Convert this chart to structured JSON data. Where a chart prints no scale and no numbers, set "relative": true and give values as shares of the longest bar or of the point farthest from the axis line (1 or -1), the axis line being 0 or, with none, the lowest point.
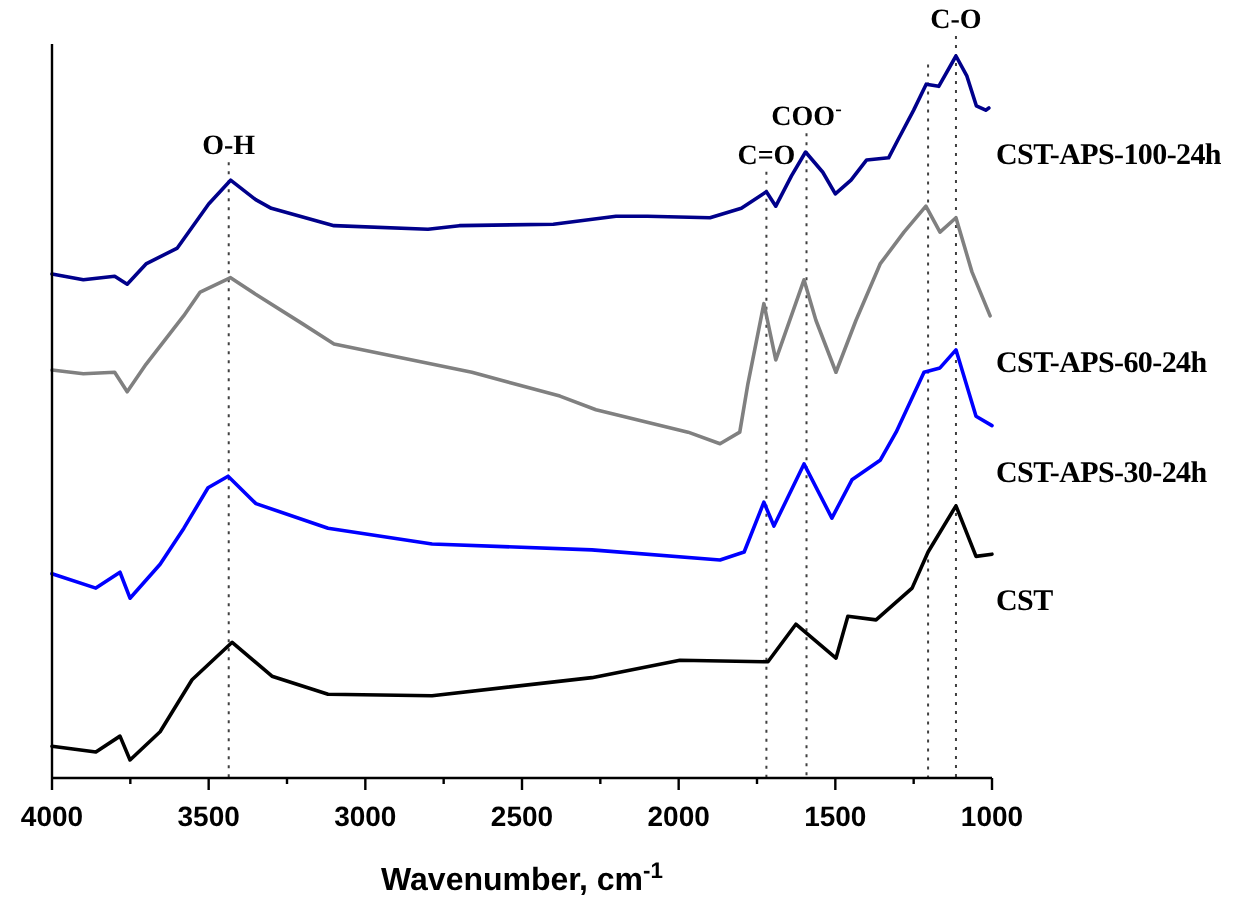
{
  "chart_data": {
    "type": "line",
    "relative": true,
    "xlabel": "Wavenumber, cm$^{-1}$",
    "xlim": [
      4000,
      1000
    ],
    "xticks": [
      4000,
      {
        "value": 3750,
        "label": null
      },
      3500,
      {
        "value": 3250,
        "label": null
      },
      3000,
      {
        "value": 2750,
        "label": null
      },
      2500,
      {
        "value": 2250,
        "label": null
      },
      2000,
      {
        "value": 1750,
        "label": null
      },
      1500,
      {
        "value": 1250,
        "label": null
      },
      1000
    ],
    "series": [
      {
        "name": "CST-APS-100-24h",
        "color": "#00008b",
        "x": [
          4000,
          3900,
          3800,
          3760,
          3700,
          3600,
          3500,
          3430,
          3350,
          3300,
          3100,
          2800,
          2700,
          2400,
          2200,
          2100,
          1900,
          1800,
          1720,
          1690,
          1640,
          1595,
          1540,
          1500,
          1450,
          1400,
          1330,
          1300,
          1250,
          1210,
          1170,
          1115,
          1080,
          1050,
          1020,
          1010
        ],
        "values": [
          0.698,
          0.69,
          0.695,
          0.684,
          0.712,
          0.734,
          0.795,
          0.828,
          0.801,
          0.789,
          0.765,
          0.76,
          0.765,
          0.767,
          0.778,
          0.778,
          0.776,
          0.789,
          0.812,
          0.792,
          0.834,
          0.867,
          0.839,
          0.809,
          0.828,
          0.856,
          0.859,
          0.884,
          0.925,
          0.961,
          0.958,
          1,
          0.972,
          0.931,
          0.925,
          0.928
        ]
      },
      {
        "name": "CST-APS-60-24h",
        "color": "#808080",
        "x": [
          4000,
          3900,
          3800,
          3760,
          3700,
          3580,
          3527,
          3430,
          3350,
          3200,
          3100,
          2660,
          2379,
          2264,
          1970,
          1868,
          1805,
          1779,
          1728,
          1690,
          1600,
          1562,
          1498,
          1434,
          1357,
          1281,
          1211,
          1166,
          1115,
          1064,
          1006
        ],
        "values": [
          0.565,
          0.56,
          0.562,
          0.535,
          0.573,
          0.64,
          0.673,
          0.693,
          0.67,
          0.629,
          0.601,
          0.562,
          0.529,
          0.51,
          0.479,
          0.463,
          0.479,
          0.546,
          0.657,
          0.579,
          0.69,
          0.634,
          0.562,
          0.634,
          0.712,
          0.756,
          0.792,
          0.756,
          0.776,
          0.701,
          0.64
        ]
      },
      {
        "name": "CST-APS-30-24h",
        "color": "#0000ff",
        "x": [
          4000,
          3860,
          3783,
          3751,
          3655,
          3579,
          3502,
          3438,
          3349,
          3119,
          2787,
          2277,
          1868,
          1791,
          1728,
          1696,
          1600,
          1511,
          1447,
          1357,
          1306,
          1217,
          1166,
          1115,
          1051,
          1000
        ],
        "values": [
          0.283,
          0.263,
          0.285,
          0.249,
          0.296,
          0.346,
          0.402,
          0.418,
          0.38,
          0.346,
          0.324,
          0.316,
          0.302,
          0.313,
          0.382,
          0.349,
          0.435,
          0.36,
          0.413,
          0.44,
          0.479,
          0.562,
          0.568,
          0.593,
          0.501,
          0.488
        ]
      },
      {
        "name": "CST",
        "color": "#000000",
        "x": [
          4000,
          3860,
          3783,
          3751,
          3655,
          3553,
          3425,
          3298,
          3119,
          2787,
          2277,
          1996,
          1715,
          1626,
          1498,
          1460,
          1370,
          1255,
          1204,
          1115,
          1051,
          1000
        ],
        "values": [
          0.044,
          0.036,
          0.058,
          0.025,
          0.064,
          0.136,
          0.188,
          0.141,
          0.116,
          0.114,
          0.139,
          0.163,
          0.161,
          0.213,
          0.166,
          0.224,
          0.219,
          0.263,
          0.313,
          0.377,
          0.307,
          0.31
        ]
      }
    ],
    "ref_lines": [
      {
        "axis": "x",
        "value": 3436,
        "label": "O-H",
        "line_style": "dotted",
        "color": "#404040"
      },
      {
        "axis": "x",
        "value": 1720,
        "label": "C=O",
        "line_style": "dotted",
        "color": "#404040"
      },
      {
        "axis": "x",
        "value": 1592,
        "label": "COO$^{-}$",
        "line_style": "dotted",
        "color": "#404040"
      },
      {
        "axis": "x",
        "value": 1204,
        "label": null,
        "line_style": "dotted",
        "color": "#404040"
      },
      {
        "axis": "x",
        "value": 1115,
        "label": "C-O",
        "line_style": "dotted",
        "color": "#404040"
      }
    ]
  }
}
